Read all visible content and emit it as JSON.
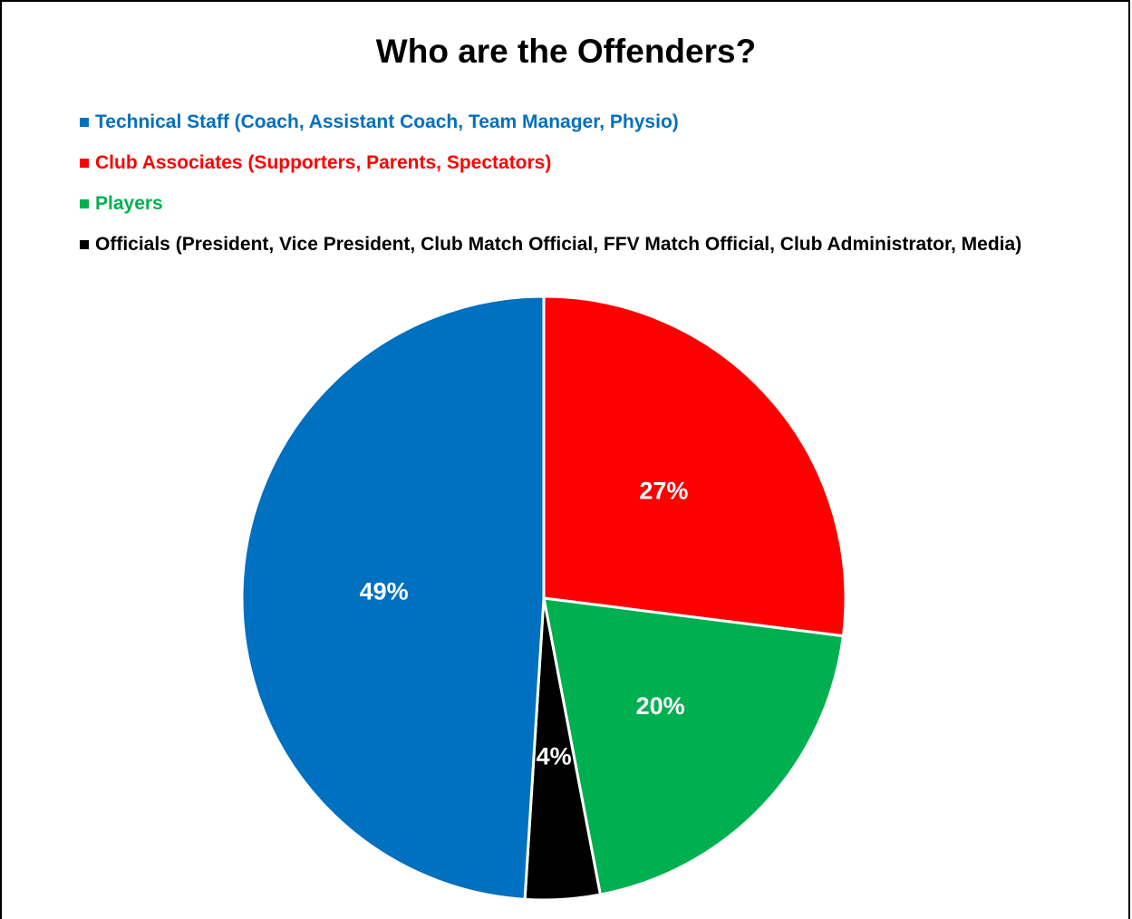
{
  "chart_data": {
    "type": "pie",
    "title": "Who are the Offenders?",
    "legend_position": "top-left",
    "slices": [
      {
        "name": "Club Associates (Supporters, Parents, Spectators)",
        "value": 27,
        "label": "27%",
        "color": "#FF0000"
      },
      {
        "name": "Players",
        "value": 20,
        "label": "20%",
        "color": "#00B050"
      },
      {
        "name": "Officials (President, Vice President, Club Match Official, FFV Match Official, Club Administrator, Media)",
        "value": 4,
        "label": "4%",
        "color": "#000000"
      },
      {
        "name": "Technical Staff (Coach, Assistant Coach, Team Manager, Physio)",
        "value": 49,
        "label": "49%",
        "color": "#0070C0"
      }
    ],
    "legend_order": [
      "Technical Staff (Coach, Assistant Coach, Team Manager, Physio)",
      "Club Associates (Supporters, Parents, Spectators)",
      "Players",
      "Officials (President, Vice President, Club Match Official, FFV Match Official, Club Administrator, Media)"
    ]
  }
}
